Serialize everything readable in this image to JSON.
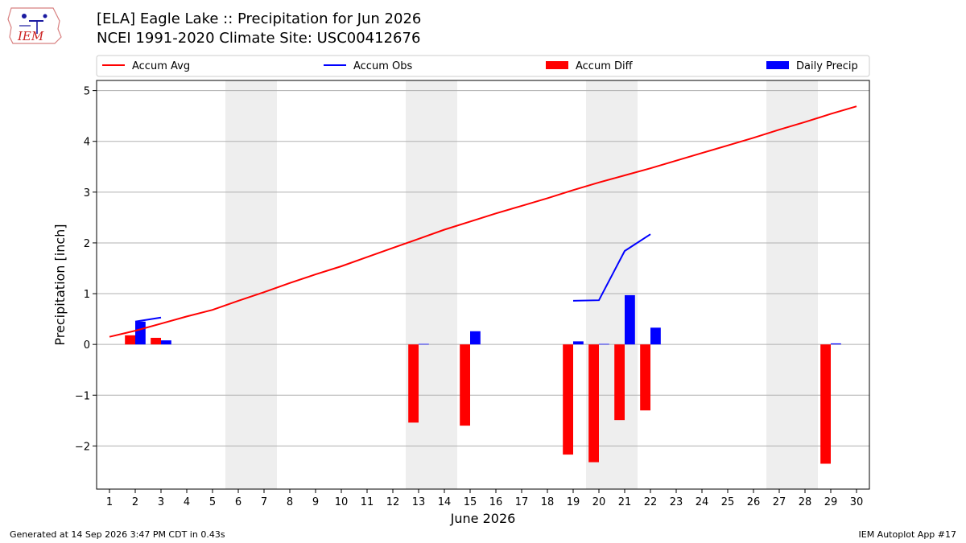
{
  "header": {
    "title": "[ELA] Eagle Lake :: Precipitation for Jun 2026",
    "subtitle": "NCEI 1991-2020 Climate Site: USC00412676"
  },
  "logo": {
    "text": "IEM",
    "icon": "iem-logo-icon"
  },
  "footer": {
    "generated": "Generated at 14 Sep 2026 3:47 PM CDT in 0.43s",
    "app": "IEM Autoplot App #17"
  },
  "chart_data": {
    "type": "bar",
    "title": "[ELA] Eagle Lake :: Precipitation for Jun 2026",
    "xlabel": "June 2026",
    "ylabel": "Precipitation [inch]",
    "xlim": [
      0.5,
      30.5
    ],
    "ylim": [
      -2.85,
      5.2
    ],
    "yticks": [
      -2,
      -1,
      0,
      1,
      2,
      3,
      4,
      5
    ],
    "ytick_labels": [
      "−2",
      "−1",
      "0",
      "1",
      "2",
      "3",
      "4",
      "5"
    ],
    "xticks": [
      1,
      2,
      3,
      4,
      5,
      6,
      7,
      8,
      9,
      10,
      11,
      12,
      13,
      14,
      15,
      16,
      17,
      18,
      19,
      20,
      21,
      22,
      23,
      24,
      25,
      26,
      27,
      28,
      29,
      30
    ],
    "grid": "horizontal",
    "legend_placement": "top",
    "weekend_shading": [
      [
        6,
        7
      ],
      [
        13,
        14
      ],
      [
        20,
        21
      ],
      [
        27,
        28
      ]
    ],
    "series": [
      {
        "name": "Accum Avg",
        "kind": "line",
        "color": "#ff0000",
        "x": [
          1,
          2,
          3,
          4,
          5,
          6,
          7,
          8,
          9,
          10,
          11,
          12,
          13,
          14,
          15,
          16,
          17,
          18,
          19,
          20,
          21,
          22,
          23,
          24,
          25,
          26,
          27,
          28,
          29,
          30
        ],
        "values": [
          0.15,
          0.27,
          0.41,
          0.55,
          0.68,
          0.86,
          1.03,
          1.21,
          1.38,
          1.54,
          1.72,
          1.9,
          2.08,
          2.26,
          2.42,
          2.58,
          2.73,
          2.88,
          3.04,
          3.19,
          3.33,
          3.47,
          3.62,
          3.77,
          3.92,
          4.07,
          4.23,
          4.38,
          4.54,
          4.69
        ]
      },
      {
        "name": "Accum Obs",
        "kind": "line",
        "color": "#0000ff",
        "segments": [
          {
            "x": [
              2,
              3
            ],
            "values": [
              0.45,
              0.53
            ]
          },
          {
            "x": [
              19,
              20,
              21,
              22
            ],
            "values": [
              0.86,
              0.87,
              1.84,
              2.17
            ]
          }
        ]
      },
      {
        "name": "Accum Diff",
        "kind": "bar",
        "color": "#ff0000",
        "offset": -0.2,
        "x": [
          2,
          3,
          13,
          15,
          19,
          20,
          21,
          22,
          29
        ],
        "values": [
          0.18,
          0.13,
          -1.54,
          -1.6,
          -2.17,
          -2.32,
          -1.49,
          -1.3,
          -2.35
        ]
      },
      {
        "name": "Daily Precip",
        "kind": "bar",
        "color": "#0000ff",
        "offset": 0.2,
        "x": [
          2,
          3,
          13,
          15,
          19,
          20,
          21,
          22,
          29
        ],
        "values": [
          0.45,
          0.08,
          0.01,
          0.26,
          0.06,
          0.01,
          0.97,
          0.33,
          0.02
        ]
      }
    ]
  }
}
